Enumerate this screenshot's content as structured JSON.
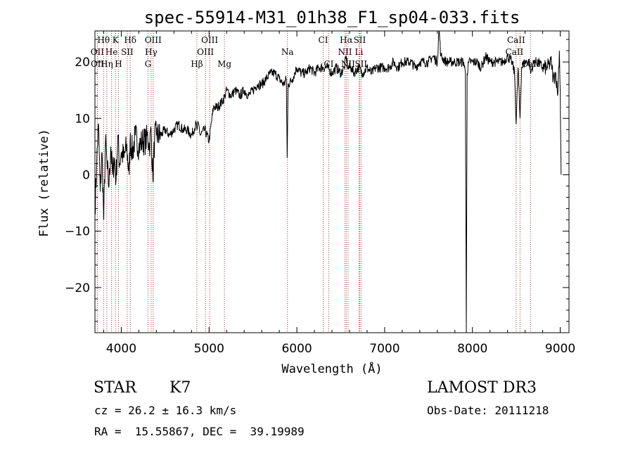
{
  "chart_data": {
    "type": "line",
    "title": "spec-55914-M31_01h38_F1_sp04-033.fits",
    "xlabel": "Wavelength (Å)",
    "ylabel": "Flux (relative)",
    "xlim": [
      3700,
      9100
    ],
    "ylim": [
      -28,
      25.5
    ],
    "xticks": [
      4000,
      5000,
      6000,
      7000,
      8000,
      9000
    ],
    "yticks": [
      -20,
      -10,
      0,
      10,
      20
    ],
    "series": [
      {
        "name": "flux",
        "x": [
          3700,
          3720,
          3740,
          3760,
          3780,
          3800,
          3820,
          3840,
          3860,
          3880,
          3900,
          3920,
          3940,
          3960,
          3980,
          4000,
          4030,
          4060,
          4090,
          4100,
          4130,
          4160,
          4200,
          4240,
          4280,
          4300,
          4320,
          4340,
          4360,
          4380,
          4400,
          4450,
          4500,
          4550,
          4600,
          4650,
          4700,
          4750,
          4800,
          4850,
          4861,
          4880,
          4900,
          4950,
          5000,
          5050,
          5100,
          5150,
          5180,
          5200,
          5250,
          5300,
          5350,
          5400,
          5450,
          5500,
          5550,
          5600,
          5650,
          5700,
          5750,
          5800,
          5850,
          5880,
          5890,
          5900,
          5950,
          6000,
          6050,
          6100,
          6150,
          6200,
          6250,
          6300,
          6350,
          6400,
          6450,
          6500,
          6540,
          6563,
          6580,
          6620,
          6650,
          6700,
          6750,
          6800,
          6850,
          6900,
          6950,
          7000,
          7050,
          7100,
          7150,
          7200,
          7250,
          7300,
          7350,
          7400,
          7450,
          7500,
          7550,
          7600,
          7620,
          7640,
          7700,
          7750,
          7800,
          7850,
          7900,
          7920,
          7930,
          7935,
          7940,
          7960,
          8000,
          8050,
          8100,
          8150,
          8200,
          8250,
          8300,
          8350,
          8400,
          8450,
          8480,
          8498,
          8520,
          8542,
          8560,
          8600,
          8650,
          8662,
          8700,
          8750,
          8800,
          8850,
          8900,
          8920,
          8950,
          8970,
          8990,
          9000,
          9010
        ],
        "y": [
          -6,
          2,
          9,
          -3,
          4,
          -8,
          6,
          1,
          -2,
          5,
          0,
          3,
          -1,
          7,
          2,
          4,
          3,
          5,
          0,
          6,
          4,
          7,
          5,
          6,
          6,
          7,
          5,
          8,
          -1,
          7,
          7,
          7,
          8,
          7,
          8,
          9,
          8,
          8,
          7,
          9,
          8,
          9,
          7,
          8,
          6,
          12,
          12,
          13,
          14,
          15,
          14,
          15,
          14,
          15,
          14,
          15,
          16,
          16,
          17,
          18,
          18,
          17,
          16,
          17,
          3,
          16,
          17,
          19,
          18,
          18,
          19,
          18,
          19,
          19,
          19,
          18,
          19,
          18,
          19,
          21,
          19,
          19,
          18,
          19,
          18,
          19,
          18,
          19,
          19,
          19,
          19,
          20,
          19,
          20,
          20,
          20,
          19,
          20,
          20,
          20,
          21,
          20,
          26,
          21,
          20,
          20,
          20,
          20,
          20,
          18,
          -28,
          -5,
          18,
          20,
          20,
          20,
          19,
          21,
          20,
          20,
          20,
          20,
          21,
          20,
          18,
          9,
          19,
          10,
          19,
          20,
          20,
          18,
          20,
          20,
          19,
          19,
          20,
          17,
          18,
          14,
          22,
          15,
          0
        ]
      }
    ],
    "spectral_lines": [
      {
        "label": "Hθ",
        "wavelength": 3798,
        "row": 0,
        "offset": 0
      },
      {
        "label": "K",
        "wavelength": 3934,
        "row": 0,
        "offset": 0
      },
      {
        "label": "Hδ",
        "wavelength": 4102,
        "row": 0,
        "offset": 0
      },
      {
        "label": "OIII",
        "wavelength": 4363,
        "row": 0,
        "offset": 0
      },
      {
        "label": "OIII",
        "wavelength": 5007,
        "row": 0,
        "offset": 0
      },
      {
        "label": "CI",
        "wavelength": 6300,
        "row": 0,
        "offset": 0
      },
      {
        "label": "Hα",
        "wavelength": 6563,
        "row": 0,
        "offset": 0
      },
      {
        "label": "SII",
        "wavelength": 6716,
        "row": 0,
        "offset": 0
      },
      {
        "label": "CaII",
        "wavelength": 8498,
        "row": 0,
        "offset": 0
      },
      {
        "label": "OII",
        "wavelength": 3727,
        "row": 1,
        "offset": 0
      },
      {
        "label": "He",
        "wavelength": 3889,
        "row": 1,
        "offset": 0
      },
      {
        "label": "SII",
        "wavelength": 4068,
        "row": 1,
        "offset": 0
      },
      {
        "label": "Hγ",
        "wavelength": 4340,
        "row": 1,
        "offset": 0
      },
      {
        "label": "OIII",
        "wavelength": 4959,
        "row": 1,
        "offset": 0
      },
      {
        "label": "Na",
        "wavelength": 5893,
        "row": 1,
        "offset": 0
      },
      {
        "label": "NII",
        "wavelength": 6548,
        "row": 1,
        "offset": 0
      },
      {
        "label": "Li",
        "wavelength": 6708,
        "row": 1,
        "offset": 0
      },
      {
        "label": "CaII",
        "wavelength": 8542,
        "row": 1,
        "offset": -8
      },
      {
        "label": "OII",
        "wavelength": 3729,
        "row": 2,
        "offset": 0
      },
      {
        "label": "Hη",
        "wavelength": 3835,
        "row": 2,
        "offset": 0
      },
      {
        "label": "H",
        "wavelength": 3968,
        "row": 2,
        "offset": 0
      },
      {
        "label": "G",
        "wavelength": 4304,
        "row": 2,
        "offset": 0
      },
      {
        "label": "Hβ",
        "wavelength": 4861,
        "row": 2,
        "offset": 0
      },
      {
        "label": "Mg",
        "wavelength": 5175,
        "row": 2,
        "offset": 0
      },
      {
        "label": "CI",
        "wavelength": 6363,
        "row": 2,
        "offset": 0
      },
      {
        "label": "NII",
        "wavelength": 6583,
        "row": 2,
        "offset": 0
      },
      {
        "label": "SII",
        "wavelength": 6731,
        "row": 2,
        "offset": 0
      },
      {
        "label": "CaII",
        "wavelength": 8662,
        "row": 2,
        "offset": 0
      }
    ]
  },
  "info": {
    "object_class": "STAR",
    "subclass": "K7",
    "survey": "LAMOST DR3",
    "velocity": "cz = 26.2 ± 16.3 km/s",
    "obs_date": "Obs-Date: 20111218",
    "coords": "RA =  15.55867, DEC =  39.19989"
  }
}
